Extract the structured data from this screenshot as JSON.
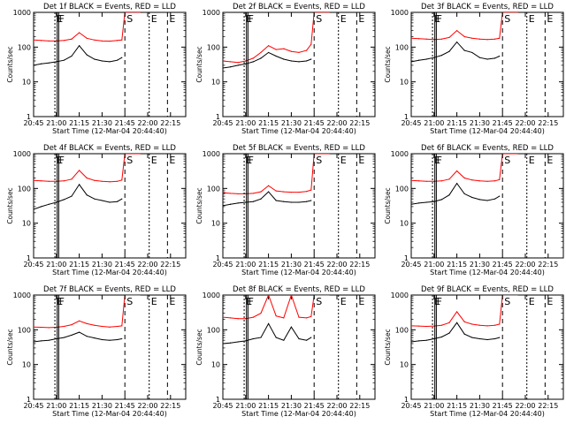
{
  "figure": {
    "start_time_label": "Start Time (12-Mar-04 20:44:40)",
    "ylabel": "Counts/sec",
    "marker_labels": [
      "E",
      "F",
      "S",
      "E",
      "E"
    ],
    "colors": {
      "events": "#000000",
      "lld": "#ff0000",
      "axes": "#000000",
      "background": "#ffffff"
    }
  },
  "chart_data": [
    {
      "type": "line",
      "title": "Det 1f BLACK = Events, RED = LLD",
      "panel": "det-1f",
      "xlabel": "Start Time (12-Mar-04 20:44:40)",
      "ylabel": "Counts/sec",
      "ylim": [
        1,
        1000
      ],
      "yscale": "log",
      "xticks": [
        "20:45",
        "21:00",
        "21:15",
        "21:30",
        "21:45",
        "22:00",
        "22:15"
      ],
      "yticks": [
        "1",
        "10",
        "100",
        "1000"
      ],
      "series": [
        {
          "name": "Events",
          "color": "#000000",
          "x": [
            0,
            5,
            10,
            15,
            20,
            25,
            30,
            35,
            40,
            45,
            50,
            55,
            58
          ],
          "y": [
            30,
            33,
            35,
            38,
            42,
            55,
            110,
            60,
            45,
            40,
            38,
            42,
            50
          ]
        },
        {
          "name": "LLD",
          "color": "#ff0000",
          "x": [
            0,
            5,
            10,
            15,
            20,
            25,
            30,
            35,
            40,
            45,
            50,
            55,
            58,
            60,
            70
          ],
          "y": [
            160,
            155,
            150,
            150,
            155,
            170,
            260,
            180,
            160,
            150,
            148,
            155,
            160,
            1000,
            1000
          ]
        }
      ]
    },
    {
      "type": "line",
      "title": "Det 2f BLACK = Events, RED = LLD",
      "panel": "det-2f",
      "xlabel": "Start Time (12-Mar-04 20:44:40)",
      "ylabel": "Counts/sec",
      "ylim": [
        1,
        1000
      ],
      "yscale": "log",
      "xticks": [
        "20:45",
        "21:00",
        "21:15",
        "21:30",
        "21:45",
        "22:00",
        "22:15"
      ],
      "yticks": [
        "1",
        "10",
        "100",
        "1000"
      ],
      "series": [
        {
          "name": "Events",
          "color": "#000000",
          "x": [
            0,
            5,
            10,
            15,
            20,
            25,
            30,
            35,
            40,
            45,
            50,
            55,
            58
          ],
          "y": [
            25,
            27,
            30,
            33,
            38,
            48,
            70,
            55,
            45,
            40,
            38,
            40,
            45
          ]
        },
        {
          "name": "LLD",
          "color": "#ff0000",
          "x": [
            0,
            5,
            10,
            15,
            20,
            25,
            30,
            35,
            40,
            45,
            50,
            55,
            58,
            60,
            70
          ],
          "y": [
            40,
            38,
            36,
            40,
            48,
            70,
            110,
            85,
            90,
            75,
            70,
            80,
            120,
            1000,
            1000
          ]
        }
      ]
    },
    {
      "type": "line",
      "title": "Det 3f BLACK = Events, RED = LLD",
      "panel": "det-3f",
      "xlabel": "Start Time (12-Mar-04 20:44:40)",
      "ylabel": "Counts/sec",
      "ylim": [
        1,
        1000
      ],
      "yscale": "log",
      "xticks": [
        "20:45",
        "21:00",
        "21:15",
        "21:30",
        "21:45",
        "22:00",
        "22:15"
      ],
      "yticks": [
        "1",
        "10",
        "100",
        "1000"
      ],
      "series": [
        {
          "name": "Events",
          "color": "#000000",
          "x": [
            0,
            5,
            10,
            15,
            20,
            25,
            30,
            35,
            40,
            45,
            50,
            55,
            58
          ],
          "y": [
            38,
            42,
            45,
            50,
            58,
            75,
            140,
            80,
            70,
            50,
            45,
            48,
            55
          ]
        },
        {
          "name": "LLD",
          "color": "#ff0000",
          "x": [
            0,
            5,
            10,
            15,
            20,
            25,
            30,
            35,
            40,
            45,
            50,
            55,
            58,
            60,
            70
          ],
          "y": [
            180,
            175,
            170,
            165,
            170,
            190,
            300,
            200,
            180,
            170,
            165,
            170,
            180,
            1000,
            1000
          ]
        }
      ]
    },
    {
      "type": "line",
      "title": "Det 4f BLACK = Events, RED = LLD",
      "panel": "det-4f",
      "xlabel": "Start Time (12-Mar-04 20:44:40)",
      "ylabel": "Counts/sec",
      "ylim": [
        1,
        1000
      ],
      "yscale": "log",
      "xticks": [
        "20:45",
        "21:00",
        "21:15",
        "21:30",
        "21:45",
        "22:00",
        "22:15"
      ],
      "yticks": [
        "1",
        "10",
        "100",
        "1000"
      ],
      "series": [
        {
          "name": "Events",
          "color": "#000000",
          "x": [
            0,
            5,
            10,
            15,
            20,
            25,
            30,
            35,
            40,
            45,
            50,
            55,
            58
          ],
          "y": [
            25,
            30,
            35,
            40,
            48,
            60,
            130,
            65,
            50,
            45,
            40,
            42,
            50
          ]
        },
        {
          "name": "LLD",
          "color": "#ff0000",
          "x": [
            0,
            5,
            10,
            15,
            20,
            25,
            30,
            35,
            40,
            45,
            50,
            55,
            58,
            60,
            70
          ],
          "y": [
            170,
            165,
            160,
            160,
            165,
            185,
            330,
            200,
            170,
            160,
            155,
            160,
            175,
            1000,
            1000
          ]
        }
      ]
    },
    {
      "type": "line",
      "title": "Det 5f BLACK = Events, RED = LLD",
      "panel": "det-5f",
      "xlabel": "Start Time (12-Mar-04 20:44:40)",
      "ylabel": "Counts/sec",
      "ylim": [
        1,
        1000
      ],
      "yscale": "log",
      "xticks": [
        "20:45",
        "21:00",
        "21:15",
        "21:30",
        "21:45",
        "22:00",
        "22:15"
      ],
      "yticks": [
        "1",
        "10",
        "100",
        "1000"
      ],
      "series": [
        {
          "name": "Events",
          "color": "#000000",
          "x": [
            0,
            5,
            10,
            15,
            20,
            25,
            30,
            35,
            40,
            45,
            50,
            55,
            58
          ],
          "y": [
            32,
            35,
            38,
            40,
            42,
            50,
            80,
            45,
            42,
            40,
            40,
            42,
            45
          ]
        },
        {
          "name": "LLD",
          "color": "#ff0000",
          "x": [
            0,
            5,
            10,
            15,
            20,
            25,
            30,
            35,
            40,
            45,
            50,
            55,
            58,
            60,
            70
          ],
          "y": [
            75,
            72,
            70,
            70,
            72,
            80,
            120,
            85,
            80,
            78,
            78,
            82,
            90,
            1000,
            1000
          ]
        }
      ]
    },
    {
      "type": "line",
      "title": "Det 6f BLACK = Events, RED = LLD",
      "panel": "det-6f",
      "xlabel": "Start Time (12-Mar-04 20:44:40)",
      "ylabel": "Counts/sec",
      "ylim": [
        1,
        1000
      ],
      "yscale": "log",
      "xticks": [
        "20:45",
        "21:00",
        "21:15",
        "21:30",
        "21:45",
        "22:00",
        "22:15"
      ],
      "yticks": [
        "1",
        "10",
        "100",
        "1000"
      ],
      "series": [
        {
          "name": "Events",
          "color": "#000000",
          "x": [
            0,
            5,
            10,
            15,
            20,
            25,
            30,
            35,
            40,
            45,
            50,
            55,
            58
          ],
          "y": [
            35,
            38,
            40,
            42,
            48,
            65,
            140,
            70,
            55,
            48,
            45,
            50,
            60
          ]
        },
        {
          "name": "LLD",
          "color": "#ff0000",
          "x": [
            0,
            5,
            10,
            15,
            20,
            25,
            30,
            35,
            40,
            45,
            50,
            55,
            58,
            60,
            70
          ],
          "y": [
            170,
            165,
            160,
            160,
            165,
            185,
            320,
            200,
            175,
            165,
            160,
            165,
            180,
            1000,
            1000
          ]
        }
      ]
    },
    {
      "type": "line",
      "title": "Det 7f BLACK = Events, RED = LLD",
      "panel": "det-7f",
      "xlabel": "Start Time (12-Mar-04 20:44:40)",
      "ylabel": "Counts/sec",
      "ylim": [
        1,
        1000
      ],
      "yscale": "log",
      "xticks": [
        "20:45",
        "21:00",
        "21:15",
        "21:30",
        "21:45",
        "22:00",
        "22:15"
      ],
      "yticks": [
        "1",
        "10",
        "100",
        "1000"
      ],
      "series": [
        {
          "name": "Events",
          "color": "#000000",
          "x": [
            0,
            5,
            10,
            15,
            20,
            25,
            30,
            35,
            40,
            45,
            50,
            55,
            58
          ],
          "y": [
            45,
            48,
            50,
            55,
            60,
            70,
            85,
            65,
            58,
            52,
            50,
            52,
            55
          ]
        },
        {
          "name": "LLD",
          "color": "#ff0000",
          "x": [
            0,
            5,
            10,
            15,
            20,
            25,
            30,
            35,
            40,
            45,
            50,
            55,
            58,
            60,
            70
          ],
          "y": [
            120,
            118,
            115,
            118,
            125,
            140,
            180,
            150,
            135,
            125,
            120,
            125,
            130,
            1000,
            1000
          ]
        }
      ]
    },
    {
      "type": "line",
      "title": "Det 8f BLACK = Events, RED = LLD",
      "panel": "det-8f",
      "xlabel": "Start Time (12-Mar-04 20:44:40)",
      "ylabel": "Counts/sec",
      "ylim": [
        1,
        1000
      ],
      "yscale": "log",
      "xticks": [
        "20:45",
        "21:00",
        "21:15",
        "21:30",
        "21:45",
        "22:00",
        "22:15"
      ],
      "yticks": [
        "1",
        "10",
        "100",
        "1000"
      ],
      "series": [
        {
          "name": "Events",
          "color": "#000000",
          "x": [
            0,
            5,
            10,
            15,
            20,
            25,
            30,
            35,
            40,
            45,
            50,
            55,
            58
          ],
          "y": [
            40,
            42,
            45,
            48,
            55,
            60,
            150,
            60,
            50,
            120,
            55,
            50,
            60
          ]
        },
        {
          "name": "LLD",
          "color": "#ff0000",
          "x": [
            0,
            5,
            10,
            15,
            20,
            25,
            30,
            35,
            40,
            45,
            50,
            55,
            58,
            60,
            70
          ],
          "y": [
            230,
            220,
            210,
            210,
            230,
            300,
            1000,
            250,
            220,
            1000,
            230,
            220,
            240,
            1000,
            1000
          ]
        }
      ]
    },
    {
      "type": "line",
      "title": "Det 9f BLACK = Events, RED = LLD",
      "panel": "det-9f",
      "xlabel": "Start Time (12-Mar-04 20:44:40)",
      "ylabel": "Counts/sec",
      "ylim": [
        1,
        1000
      ],
      "yscale": "log",
      "xticks": [
        "20:45",
        "21:00",
        "21:15",
        "21:30",
        "21:45",
        "22:00",
        "22:15"
      ],
      "yticks": [
        "1",
        "10",
        "100",
        "1000"
      ],
      "series": [
        {
          "name": "Events",
          "color": "#000000",
          "x": [
            0,
            5,
            10,
            15,
            20,
            25,
            30,
            35,
            40,
            45,
            50,
            55,
            58
          ],
          "y": [
            45,
            48,
            50,
            55,
            62,
            80,
            160,
            75,
            60,
            55,
            52,
            55,
            60
          ]
        },
        {
          "name": "LLD",
          "color": "#ff0000",
          "x": [
            0,
            5,
            10,
            15,
            20,
            25,
            30,
            35,
            40,
            45,
            50,
            55,
            58,
            60,
            70
          ],
          "y": [
            130,
            128,
            125,
            128,
            135,
            160,
            330,
            170,
            145,
            135,
            130,
            135,
            145,
            1000,
            1000
          ]
        }
      ]
    }
  ]
}
